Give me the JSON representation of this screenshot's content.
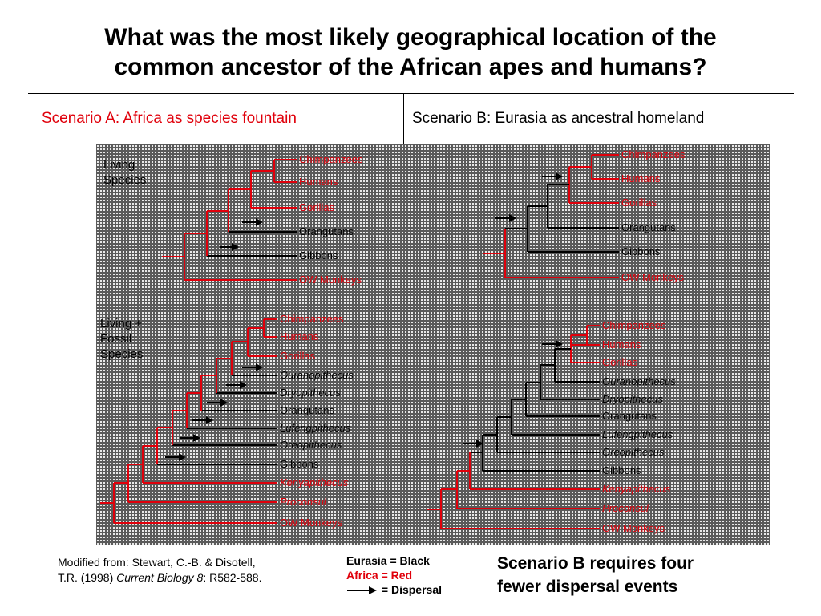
{
  "title_line1": "What was the most likely geographical location of the",
  "title_line2": "common ancestor of the African apes and humans?",
  "scenario_a": "Scenario A:  Africa as species fountain",
  "scenario_b": "Scenario B:  Eurasia as ancestral homeland",
  "colors": {
    "eurasia": "#000000",
    "africa": "#e0000b"
  },
  "side_labels": {
    "living_1": "Living",
    "living_2": "Species",
    "fossil_1": "Living +",
    "fossil_2": "Fossil",
    "fossil_3": "Species"
  },
  "taxa_living": [
    "Chimpanzees",
    "Humans",
    "Gorillas",
    "Orangutans",
    "Gibbons",
    "OW Monkeys"
  ],
  "taxa_fossil": [
    "Chimpanzees",
    "Humans",
    "Gorillas",
    "Ouranopithecus",
    "Dryopithecus",
    "Orangutans",
    "Lufengpithecus",
    "Oreopithecus",
    "Gibbons",
    "Kenyapithecus",
    "Proconsul",
    "OW Monkeys"
  ],
  "trees": [
    {
      "name": "scenario-a-living",
      "leaves": [
        {
          "name": "Chimpanzees",
          "region": "Africa"
        },
        {
          "name": "Humans",
          "region": "Africa"
        },
        {
          "name": "Gorillas",
          "region": "Africa"
        },
        {
          "name": "Orangutans",
          "region": "Eurasia"
        },
        {
          "name": "Gibbons",
          "region": "Eurasia"
        },
        {
          "name": "OW Monkeys",
          "region": "Africa"
        }
      ],
      "ancestral_nodes": "Africa",
      "dispersals": [
        "to Orangutans",
        "to Gibbons"
      ]
    },
    {
      "name": "scenario-b-living",
      "leaves": [
        {
          "name": "Chimpanzees",
          "region": "Africa"
        },
        {
          "name": "Humans",
          "region": "Africa"
        },
        {
          "name": "Gorillas",
          "region": "Africa"
        },
        {
          "name": "Orangutans",
          "region": "Eurasia"
        },
        {
          "name": "Gibbons",
          "region": "Eurasia"
        },
        {
          "name": "OW Monkeys",
          "region": "Africa"
        }
      ],
      "ancestral_nodes": "Eurasia for the hominoid clade, Africa at root and African ape clade",
      "dispersals": [
        "into Eurasia at hominoid base",
        "back to Africa at African ape clade"
      ]
    },
    {
      "name": "scenario-a-fossil",
      "leaves": [
        {
          "name": "Chimpanzees",
          "region": "Africa"
        },
        {
          "name": "Humans",
          "region": "Africa"
        },
        {
          "name": "Gorillas",
          "region": "Africa"
        },
        {
          "name": "Ouranopithecus",
          "region": "Eurasia"
        },
        {
          "name": "Dryopithecus",
          "region": "Eurasia"
        },
        {
          "name": "Orangutans",
          "region": "Eurasia"
        },
        {
          "name": "Lufengpithecus",
          "region": "Eurasia"
        },
        {
          "name": "Oreopithecus",
          "region": "Eurasia"
        },
        {
          "name": "Gibbons",
          "region": "Eurasia"
        },
        {
          "name": "Kenyapithecus",
          "region": "Africa"
        },
        {
          "name": "Proconsul",
          "region": "Africa"
        },
        {
          "name": "OW Monkeys",
          "region": "Africa"
        }
      ],
      "ancestral_nodes": "Africa",
      "dispersals": [
        "to Ouranopithecus",
        "to Dryopithecus",
        "to Orangutans",
        "to Lufengpithecus",
        "to Oreopithecus",
        "to Gibbons"
      ]
    },
    {
      "name": "scenario-b-fossil",
      "leaves": [
        {
          "name": "Chimpanzees",
          "region": "Africa"
        },
        {
          "name": "Humans",
          "region": "Africa"
        },
        {
          "name": "Gorillas",
          "region": "Africa"
        },
        {
          "name": "Ouranopithecus",
          "region": "Eurasia"
        },
        {
          "name": "Dryopithecus",
          "region": "Eurasia"
        },
        {
          "name": "Orangutans",
          "region": "Eurasia"
        },
        {
          "name": "Lufengpithecus",
          "region": "Eurasia"
        },
        {
          "name": "Oreopithecus",
          "region": "Eurasia"
        },
        {
          "name": "Gibbons",
          "region": "Eurasia"
        },
        {
          "name": "Kenyapithecus",
          "region": "Africa"
        },
        {
          "name": "Proconsul",
          "region": "Africa"
        },
        {
          "name": "OW Monkeys",
          "region": "Africa"
        }
      ],
      "ancestral_nodes": "Eurasia for the hominoid clade, Africa at root and African ape clade",
      "dispersals": [
        "into Eurasia at hominoid base",
        "back to Africa at African ape clade"
      ]
    }
  ],
  "reference": {
    "line1": "Modified from:  Stewart, C.-B. & Disotell,",
    "line2a": "T.R. (1998) ",
    "journal": "Current Biology 8",
    "line2b": ": R582-588."
  },
  "legend": {
    "eurasia": "Eurasia = Black",
    "africa": "Africa = Red",
    "dispersal": "= Dispersal"
  },
  "conclusion_line1": "Scenario B requires four",
  "conclusion_line2": "fewer dispersal events"
}
